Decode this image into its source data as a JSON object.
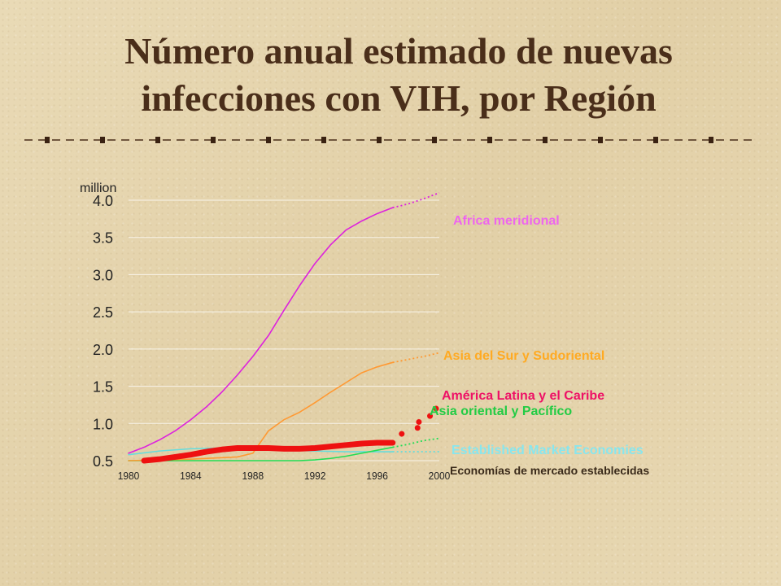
{
  "slide": {
    "title_line1": "Número anual estimado de nuevas",
    "title_line2": "infecciones con VIH, por Región"
  },
  "colors": {
    "title": "#4a2e1a",
    "background": "#e6d6b0"
  },
  "chart_data": {
    "type": "line",
    "title": "",
    "ylabel": "million",
    "xlabel": "",
    "x_ticks": [
      "1980",
      "1984",
      "1988",
      "1992",
      "1996",
      "2000"
    ],
    "y_ticks": [
      "0.5",
      "1.0",
      "1.5",
      "2.0",
      "2.5",
      "3.0",
      "3.5",
      "4.0"
    ],
    "xlim": [
      1980,
      2000
    ],
    "ylim": [
      0.5,
      4.0
    ],
    "grid": "horizontal",
    "series": [
      {
        "name": "Africa meridional",
        "color": "#dd22dd",
        "style": "thin",
        "x": [
          1980,
          1981,
          1982,
          1983,
          1984,
          1985,
          1986,
          1987,
          1988,
          1989,
          1990,
          1991,
          1992,
          1993,
          1994,
          1995,
          1996,
          1997
        ],
        "y": [
          0.6,
          0.68,
          0.78,
          0.9,
          1.05,
          1.22,
          1.42,
          1.65,
          1.9,
          2.18,
          2.52,
          2.85,
          3.15,
          3.4,
          3.6,
          3.72,
          3.82,
          3.9
        ],
        "projection_x": [
          1997,
          1998,
          1999,
          2000
        ],
        "projection_y": [
          3.9,
          3.95,
          4.02,
          4.1
        ]
      },
      {
        "name": "Asia del Sur y Sudoriental",
        "color": "#ff9933",
        "style": "thin",
        "x": [
          1980,
          1984,
          1987,
          1988,
          1989,
          1990,
          1991,
          1992,
          1993,
          1994,
          1995,
          1996,
          1997
        ],
        "y": [
          0.5,
          0.52,
          0.55,
          0.6,
          0.9,
          1.05,
          1.15,
          1.28,
          1.42,
          1.55,
          1.68,
          1.76,
          1.82
        ],
        "projection_x": [
          1997,
          1998,
          1999,
          2000
        ],
        "projection_y": [
          1.82,
          1.86,
          1.9,
          1.95
        ]
      },
      {
        "name": "América Latina y el Caribe",
        "color": "#ee1111",
        "style": "thick",
        "x": [
          1981,
          1982,
          1983,
          1984,
          1985,
          1986,
          1987,
          1988,
          1989,
          1990,
          1991,
          1992,
          1993,
          1994,
          1995,
          1996,
          1997
        ],
        "y": [
          0.5,
          0.52,
          0.55,
          0.58,
          0.62,
          0.65,
          0.67,
          0.67,
          0.67,
          0.66,
          0.66,
          0.67,
          0.69,
          0.71,
          0.73,
          0.74,
          0.74
        ],
        "projection_x": [
          1997,
          1998,
          1999,
          2000
        ],
        "projection_y": [
          0.74,
          0.86,
          1.02,
          1.2
        ]
      },
      {
        "name": "Asia oriental y Pacífico",
        "color": "#22dd55",
        "style": "thin",
        "x": [
          1980,
          1984,
          1988,
          1991,
          1992,
          1993,
          1994,
          1995,
          1996,
          1997
        ],
        "y": [
          0.5,
          0.5,
          0.5,
          0.5,
          0.51,
          0.53,
          0.56,
          0.6,
          0.64,
          0.68
        ],
        "projection_x": [
          1997,
          1998,
          1999,
          2000
        ],
        "projection_y": [
          0.68,
          0.72,
          0.77,
          0.8
        ]
      },
      {
        "name": "Established Market Economies",
        "color": "#66dddd",
        "style": "thin",
        "x": [
          1980,
          1982,
          1984,
          1986,
          1988,
          1990,
          1992,
          1994,
          1996,
          1997
        ],
        "y": [
          0.58,
          0.63,
          0.66,
          0.67,
          0.66,
          0.64,
          0.63,
          0.62,
          0.62,
          0.62
        ],
        "projection_x": [
          1997,
          1998,
          1999,
          2000
        ],
        "projection_y": [
          0.62,
          0.62,
          0.62,
          0.62
        ]
      }
    ],
    "legend": [
      {
        "label": "Africa meridional",
        "color": "#ee66ee"
      },
      {
        "label": "Asia del Sur y Sudoriental",
        "color": "#ffaa22"
      },
      {
        "label": "América Latina y el Caribe",
        "color": "#ee1166"
      },
      {
        "label": "Asia oriental y Pacífico",
        "color": "#22cc44"
      },
      {
        "label": "Established Market Economies",
        "color": "#88e6ee"
      },
      {
        "label": "Economías de mercado establecidas",
        "color": "#3a2a1a"
      }
    ]
  }
}
